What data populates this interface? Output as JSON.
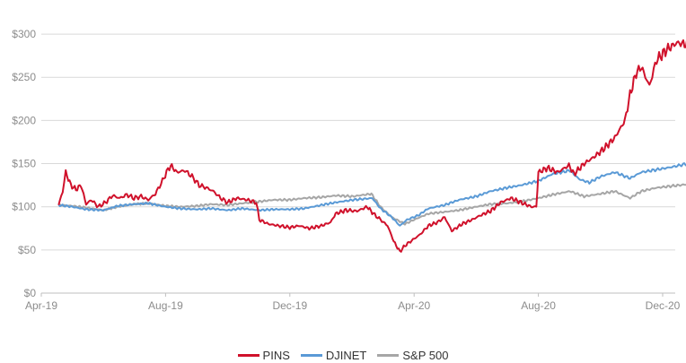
{
  "chart_data": {
    "type": "line",
    "title": "",
    "xlabel": "",
    "ylabel": "",
    "x_ticks": [
      "Apr-19",
      "Aug-19",
      "Dec-19",
      "Apr-20",
      "Aug-20",
      "Dec-20"
    ],
    "y_ticks": [
      "$0",
      "$50",
      "$100",
      "$150",
      "$200",
      "$250",
      "$300"
    ],
    "ylim": [
      0,
      325
    ],
    "xlim_months": [
      "2019-04",
      "2020-12"
    ],
    "grid": "horizontal",
    "legend": "bottom-center",
    "series": [
      {
        "name": "PINS",
        "color": "#d0112b",
        "points": [
          [
            "2019-04-18",
            102
          ],
          [
            "2019-04-22",
            118
          ],
          [
            "2019-04-25",
            140
          ],
          [
            "2019-04-30",
            125
          ],
          [
            "2019-05-05",
            120
          ],
          [
            "2019-05-10",
            125
          ],
          [
            "2019-05-15",
            103
          ],
          [
            "2019-05-20",
            108
          ],
          [
            "2019-05-27",
            100
          ],
          [
            "2019-06-03",
            105
          ],
          [
            "2019-06-10",
            113
          ],
          [
            "2019-06-17",
            110
          ],
          [
            "2019-06-24",
            114
          ],
          [
            "2019-07-01",
            110
          ],
          [
            "2019-07-08",
            112
          ],
          [
            "2019-07-15",
            108
          ],
          [
            "2019-07-22",
            115
          ],
          [
            "2019-07-29",
            130
          ],
          [
            "2019-08-02",
            140
          ],
          [
            "2019-08-06",
            148
          ],
          [
            "2019-08-12",
            140
          ],
          [
            "2019-08-20",
            142
          ],
          [
            "2019-08-27",
            135
          ],
          [
            "2019-09-03",
            125
          ],
          [
            "2019-09-10",
            122
          ],
          [
            "2019-09-17",
            118
          ],
          [
            "2019-09-24",
            110
          ],
          [
            "2019-10-01",
            105
          ],
          [
            "2019-10-10",
            110
          ],
          [
            "2019-10-20",
            108
          ],
          [
            "2019-10-29",
            105
          ],
          [
            "2019-11-01",
            85
          ],
          [
            "2019-11-10",
            80
          ],
          [
            "2019-11-20",
            78
          ],
          [
            "2019-12-01",
            76
          ],
          [
            "2019-12-10",
            78
          ],
          [
            "2019-12-20",
            75
          ],
          [
            "2020-01-01",
            78
          ],
          [
            "2020-01-10",
            82
          ],
          [
            "2020-01-15",
            92
          ],
          [
            "2020-01-25",
            96
          ],
          [
            "2020-02-05",
            95
          ],
          [
            "2020-02-15",
            100
          ],
          [
            "2020-02-21",
            92
          ],
          [
            "2020-02-28",
            85
          ],
          [
            "2020-03-06",
            78
          ],
          [
            "2020-03-12",
            60
          ],
          [
            "2020-03-18",
            48
          ],
          [
            "2020-03-23",
            55
          ],
          [
            "2020-03-31",
            62
          ],
          [
            "2020-04-07",
            68
          ],
          [
            "2020-04-15",
            78
          ],
          [
            "2020-04-24",
            82
          ],
          [
            "2020-05-01",
            88
          ],
          [
            "2020-05-08",
            72
          ],
          [
            "2020-05-18",
            80
          ],
          [
            "2020-05-28",
            85
          ],
          [
            "2020-06-05",
            90
          ],
          [
            "2020-06-15",
            95
          ],
          [
            "2020-06-25",
            105
          ],
          [
            "2020-07-05",
            110
          ],
          [
            "2020-07-15",
            105
          ],
          [
            "2020-07-25",
            100
          ],
          [
            "2020-07-30",
            100
          ],
          [
            "2020-08-01",
            140
          ],
          [
            "2020-08-10",
            145
          ],
          [
            "2020-08-20",
            140
          ],
          [
            "2020-08-31",
            148
          ],
          [
            "2020-09-05",
            138
          ],
          [
            "2020-09-15",
            150
          ],
          [
            "2020-09-25",
            158
          ],
          [
            "2020-10-05",
            168
          ],
          [
            "2020-10-15",
            180
          ],
          [
            "2020-10-25",
            200
          ],
          [
            "2020-10-30",
            230
          ],
          [
            "2020-11-05",
            255
          ],
          [
            "2020-11-10",
            262
          ],
          [
            "2020-11-18",
            240
          ],
          [
            "2020-11-25",
            270
          ],
          [
            "2020-12-05",
            282
          ],
          [
            "2020-12-15",
            290
          ],
          [
            "2020-12-25",
            288
          ],
          [
            "2021-01-01",
            298
          ],
          [
            "2021-01-05",
            275
          ]
        ]
      },
      {
        "name": "DJINET",
        "color": "#5a9ad6",
        "points": [
          [
            "2019-04-18",
            102
          ],
          [
            "2019-05-01",
            100
          ],
          [
            "2019-05-15",
            97
          ],
          [
            "2019-06-01",
            96
          ],
          [
            "2019-06-15",
            101
          ],
          [
            "2019-07-01",
            103
          ],
          [
            "2019-07-15",
            104
          ],
          [
            "2019-08-01",
            100
          ],
          [
            "2019-08-15",
            98
          ],
          [
            "2019-09-01",
            97
          ],
          [
            "2019-09-15",
            98
          ],
          [
            "2019-10-01",
            96
          ],
          [
            "2019-10-15",
            98
          ],
          [
            "2019-11-01",
            96
          ],
          [
            "2019-11-15",
            97
          ],
          [
            "2019-12-01",
            97
          ],
          [
            "2019-12-15",
            98
          ],
          [
            "2020-01-01",
            102
          ],
          [
            "2020-01-15",
            105
          ],
          [
            "2020-02-01",
            108
          ],
          [
            "2020-02-20",
            110
          ],
          [
            "2020-02-28",
            98
          ],
          [
            "2020-03-10",
            88
          ],
          [
            "2020-03-18",
            78
          ],
          [
            "2020-03-25",
            85
          ],
          [
            "2020-04-05",
            90
          ],
          [
            "2020-04-15",
            98
          ],
          [
            "2020-05-01",
            102
          ],
          [
            "2020-05-15",
            108
          ],
          [
            "2020-06-01",
            112
          ],
          [
            "2020-06-15",
            118
          ],
          [
            "2020-07-01",
            122
          ],
          [
            "2020-07-15",
            125
          ],
          [
            "2020-08-01",
            130
          ],
          [
            "2020-08-15",
            138
          ],
          [
            "2020-09-01",
            142
          ],
          [
            "2020-09-10",
            132
          ],
          [
            "2020-09-20",
            128
          ],
          [
            "2020-10-01",
            135
          ],
          [
            "2020-10-15",
            140
          ],
          [
            "2020-10-30",
            133
          ],
          [
            "2020-11-10",
            140
          ],
          [
            "2020-11-25",
            143
          ],
          [
            "2020-12-10",
            146
          ],
          [
            "2020-12-25",
            150
          ],
          [
            "2021-01-01",
            152
          ],
          [
            "2021-01-05",
            150
          ]
        ]
      },
      {
        "name": "S&P 500",
        "color": "#a6a6a6",
        "points": [
          [
            "2019-04-18",
            102
          ],
          [
            "2019-05-01",
            101
          ],
          [
            "2019-05-15",
            99
          ],
          [
            "2019-06-01",
            96
          ],
          [
            "2019-06-15",
            100
          ],
          [
            "2019-07-01",
            103
          ],
          [
            "2019-07-15",
            104
          ],
          [
            "2019-08-01",
            101
          ],
          [
            "2019-08-15",
            100
          ],
          [
            "2019-09-01",
            101
          ],
          [
            "2019-09-15",
            103
          ],
          [
            "2019-10-01",
            102
          ],
          [
            "2019-10-15",
            104
          ],
          [
            "2019-11-01",
            106
          ],
          [
            "2019-11-15",
            108
          ],
          [
            "2019-12-01",
            108
          ],
          [
            "2019-12-15",
            110
          ],
          [
            "2020-01-01",
            111
          ],
          [
            "2020-01-15",
            113
          ],
          [
            "2020-02-01",
            112
          ],
          [
            "2020-02-19",
            115
          ],
          [
            "2020-02-28",
            100
          ],
          [
            "2020-03-10",
            88
          ],
          [
            "2020-03-23",
            80
          ],
          [
            "2020-04-01",
            85
          ],
          [
            "2020-04-15",
            92
          ],
          [
            "2020-05-01",
            94
          ],
          [
            "2020-05-15",
            96
          ],
          [
            "2020-06-01",
            100
          ],
          [
            "2020-06-15",
            103
          ],
          [
            "2020-07-01",
            104
          ],
          [
            "2020-07-15",
            106
          ],
          [
            "2020-08-01",
            110
          ],
          [
            "2020-08-15",
            114
          ],
          [
            "2020-09-01",
            118
          ],
          [
            "2020-09-15",
            112
          ],
          [
            "2020-10-01",
            115
          ],
          [
            "2020-10-15",
            118
          ],
          [
            "2020-10-30",
            110
          ],
          [
            "2020-11-10",
            118
          ],
          [
            "2020-11-25",
            122
          ],
          [
            "2020-12-10",
            124
          ],
          [
            "2020-12-25",
            126
          ],
          [
            "2021-01-05",
            128
          ]
        ]
      }
    ]
  }
}
